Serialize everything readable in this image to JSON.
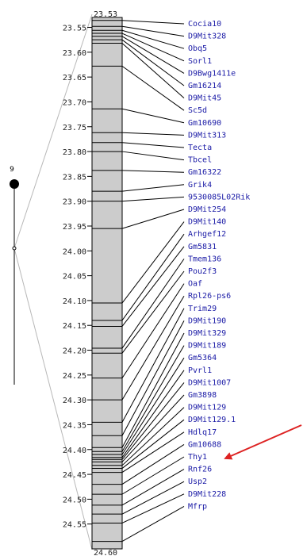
{
  "chromosome": {
    "name": "9",
    "start_label": "23.53",
    "end_label": "24.60"
  },
  "scale": {
    "min": 23.53,
    "max": 24.6,
    "ticks": [
      "23.55",
      "23.60",
      "23.65",
      "23.70",
      "23.75",
      "23.80",
      "23.85",
      "23.90",
      "23.95",
      "24.00",
      "24.05",
      "24.10",
      "24.15",
      "24.20",
      "24.25",
      "24.30",
      "24.35",
      "24.40",
      "24.45",
      "24.50",
      "24.55"
    ]
  },
  "genes": [
    {
      "name": "Cocia10",
      "pos": 23.536
    },
    {
      "name": "D9Mit328",
      "pos": 23.548
    },
    {
      "name": "Obq5",
      "pos": 23.556
    },
    {
      "name": "Sorl1",
      "pos": 23.562
    },
    {
      "name": "D9Bwg1411e",
      "pos": 23.568
    },
    {
      "name": "Gm16214",
      "pos": 23.575
    },
    {
      "name": "D9Mit45",
      "pos": 23.582
    },
    {
      "name": "Sc5d",
      "pos": 23.628
    },
    {
      "name": "Gm10690",
      "pos": 23.714
    },
    {
      "name": "D9Mit313",
      "pos": 23.762
    },
    {
      "name": "Tecta",
      "pos": 23.782
    },
    {
      "name": "Tbcel",
      "pos": 23.8
    },
    {
      "name": "Gm16322",
      "pos": 23.838
    },
    {
      "name": "Grik4",
      "pos": 23.88
    },
    {
      "name": "9530085L02Rik",
      "pos": 23.9
    },
    {
      "name": "D9Mit254",
      "pos": 23.955
    },
    {
      "name": "D9Mit140",
      "pos": 24.105
    },
    {
      "name": "Arhgef12",
      "pos": 24.14
    },
    {
      "name": "Gm5831",
      "pos": 24.152
    },
    {
      "name": "Tmem136",
      "pos": 24.196
    },
    {
      "name": "Pou2f3",
      "pos": 24.206
    },
    {
      "name": "Oaf",
      "pos": 24.256
    },
    {
      "name": "Rpl26-ps6",
      "pos": 24.3
    },
    {
      "name": "Trim29",
      "pos": 24.345
    },
    {
      "name": "D9Mit190",
      "pos": 24.372
    },
    {
      "name": "D9Mit329",
      "pos": 24.396
    },
    {
      "name": "D9Mit189",
      "pos": 24.404
    },
    {
      "name": "Gm5364",
      "pos": 24.41
    },
    {
      "name": "Pvrl1",
      "pos": 24.416
    },
    {
      "name": "D9Mit1007",
      "pos": 24.42
    },
    {
      "name": "Gm3898",
      "pos": 24.425
    },
    {
      "name": "D9Mit129",
      "pos": 24.432
    },
    {
      "name": "D9Mit129.1",
      "pos": 24.438
    },
    {
      "name": "Hdlq17",
      "pos": 24.446
    },
    {
      "name": "Gm10688",
      "pos": 24.47
    },
    {
      "name": "Thy1",
      "pos": 24.49
    },
    {
      "name": "Rnf26",
      "pos": 24.512
    },
    {
      "name": "Usp2",
      "pos": 24.53
    },
    {
      "name": "D9Mit228",
      "pos": 24.548
    },
    {
      "name": "Mfrp",
      "pos": 24.585
    }
  ],
  "colors": {
    "bar_fill": "#cccccc",
    "gene_text": "#1a1aa6",
    "arrow": "#dd2222",
    "zoom_lines": "#b8b8b8"
  },
  "annotation": {
    "arrow_target": "Thy1"
  }
}
